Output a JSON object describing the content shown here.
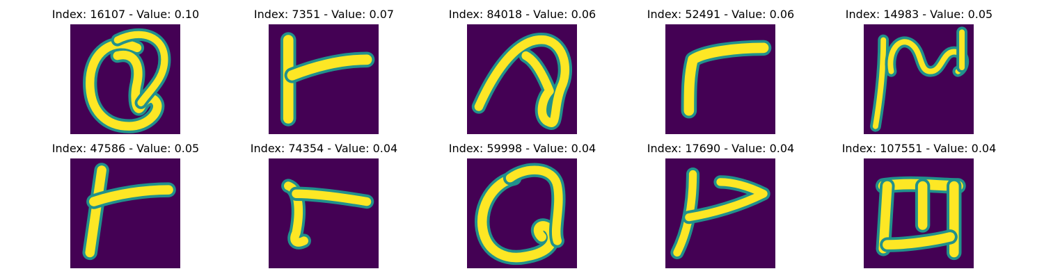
{
  "colors": {
    "background": "#440154",
    "mid": "#21918c",
    "stroke": "#fde725"
  },
  "grid": {
    "rows": [
      [
        {
          "title": "Index: 16107 - Value: 0.10",
          "glyph": "letter-a-loop"
        },
        {
          "title": "Index: 7351 - Value: 0.07",
          "glyph": "letter-r-flat"
        },
        {
          "title": "Index: 84018 - Value: 0.06",
          "glyph": "letter-a-tall"
        },
        {
          "title": "Index: 52491 - Value: 0.06",
          "glyph": "letter-r-curve"
        },
        {
          "title": "Index: 14983 - Value: 0.05",
          "glyph": "letter-n-wave"
        }
      ],
      [
        {
          "title": "Index: 47586 - Value: 0.05",
          "glyph": "letter-r-cross"
        },
        {
          "title": "Index: 74354 - Value: 0.04",
          "glyph": "letter-r-short"
        },
        {
          "title": "Index: 59998 - Value: 0.04",
          "glyph": "letter-a-round"
        },
        {
          "title": "Index: 17690 - Value: 0.04",
          "glyph": "letter-r-hook"
        },
        {
          "title": "Index: 107551 - Value: 0.04",
          "glyph": "letter-m-rotated"
        }
      ]
    ]
  }
}
